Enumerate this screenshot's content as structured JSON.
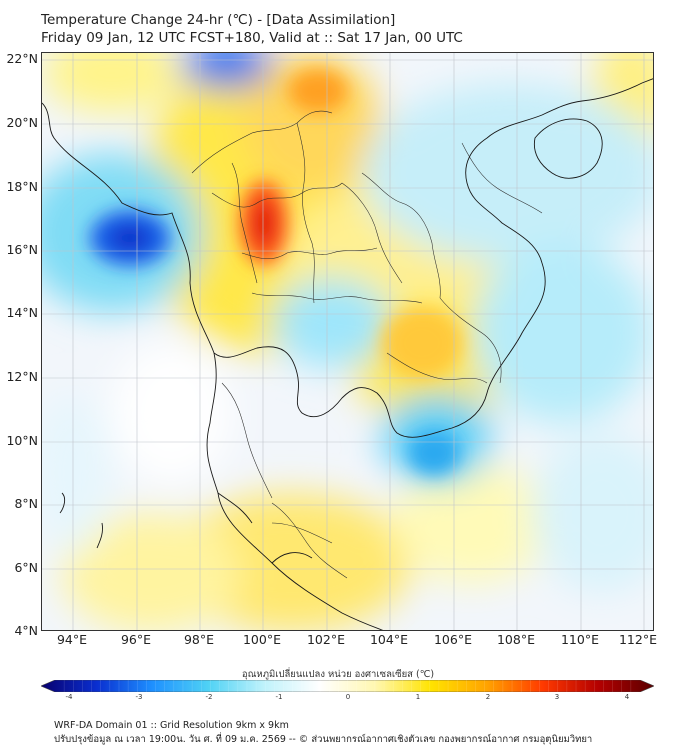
{
  "title_line1": "Temperature Change 24-hr (℃) - [Data Assimilation]",
  "title_line2": "Friday 09 Jan, 12 UTC FCST+180, Valid at :: Sat 17 Jan, 00 UTC",
  "lat_labels": [
    "22°N",
    "20°N",
    "18°N",
    "16°N",
    "14°N",
    "12°N",
    "10°N",
    "8°N",
    "6°N",
    "4°N"
  ],
  "lon_labels": [
    "94°E",
    "96°E",
    "98°E",
    "100°E",
    "102°E",
    "104°E",
    "106°E",
    "108°E",
    "110°E",
    "112°E"
  ],
  "colorbar": {
    "title": "อุณหภูมิเปลี่ยนแปลง หน่วย องศาเซลเซียส (℃)",
    "ticks": [
      "-4",
      "-3",
      "-2",
      "-1",
      "0",
      "1",
      "2",
      "3",
      "4"
    ],
    "colors": [
      "#08006e",
      "#0a2fd0",
      "#1e90ff",
      "#4fd2f5",
      "#bff2fb",
      "#ffffff",
      "#fff7b0",
      "#ffe300",
      "#ffa300",
      "#ff3a00",
      "#b40000",
      "#5a0000"
    ]
  },
  "footer_line1": "WRF-DA Domain 01 :: Grid Resolution 9km x 9km",
  "footer_line2": "ปรับปรุงข้อมูล ณ เวลา 19:00น. วัน ศ. ที่ 09 ม.ค. 2569 -- © ส่วนพยากรณ์อากาศเชิงตัวเลข กองพยากรณ์อากาศ กรมอุตุนิยมวิทยา"
}
